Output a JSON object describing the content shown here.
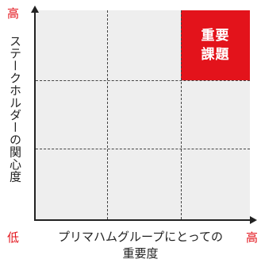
{
  "axes": {
    "y_high": "高",
    "y_title": "ステークホルダーの関心度",
    "x_low": "低",
    "x_high": "高",
    "x_title_line1": "プリマハムグループにとっての",
    "x_title_line2": "重要度"
  },
  "highlight": {
    "line1": "重要",
    "line2": "課題"
  },
  "colors": {
    "accent": "#e3131b",
    "grid_bg": "#eeeeee",
    "axis": "#222222"
  }
}
